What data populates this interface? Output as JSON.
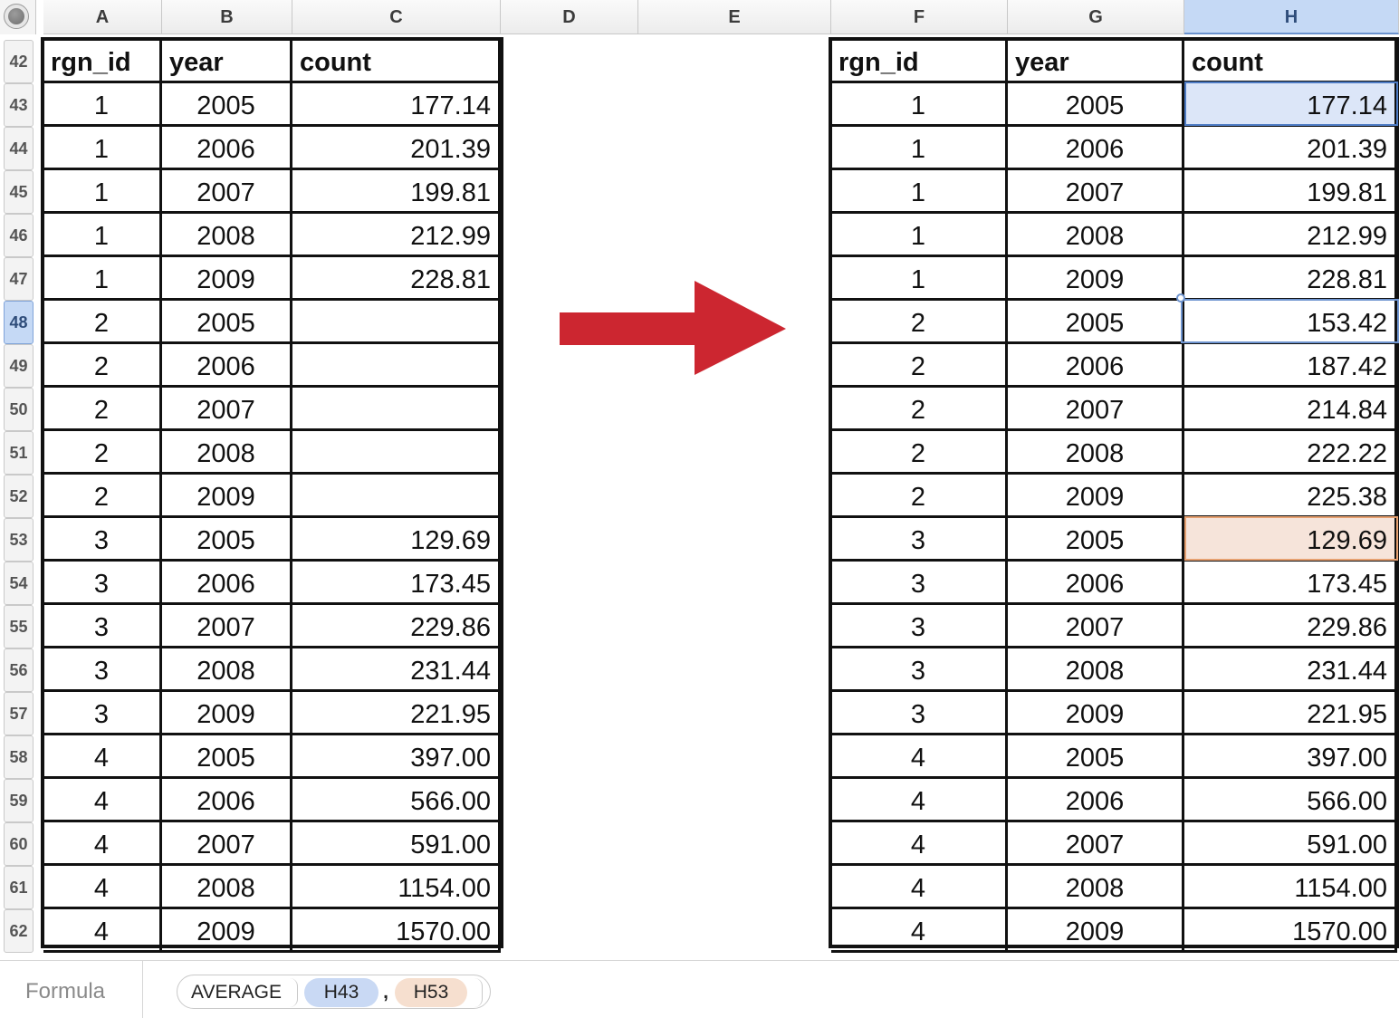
{
  "column_headers": [
    {
      "label": "A",
      "selected": false
    },
    {
      "label": "B",
      "selected": false
    },
    {
      "label": "C",
      "selected": false
    },
    {
      "label": "D",
      "selected": false
    },
    {
      "label": "E",
      "selected": false
    },
    {
      "label": "F",
      "selected": false
    },
    {
      "label": "G",
      "selected": false
    },
    {
      "label": "H",
      "selected": true
    }
  ],
  "row_headers": [
    "42",
    "43",
    "44",
    "45",
    "46",
    "47",
    "48",
    "49",
    "50",
    "51",
    "52",
    "53",
    "54",
    "55",
    "56",
    "57",
    "58",
    "59",
    "60",
    "61",
    "62"
  ],
  "selected_row": "48",
  "left_table": {
    "headers": [
      "rgn_id",
      "year",
      "count"
    ],
    "rows": [
      [
        "1",
        "2005",
        "177.14"
      ],
      [
        "1",
        "2006",
        "201.39"
      ],
      [
        "1",
        "2007",
        "199.81"
      ],
      [
        "1",
        "2008",
        "212.99"
      ],
      [
        "1",
        "2009",
        "228.81"
      ],
      [
        "2",
        "2005",
        ""
      ],
      [
        "2",
        "2006",
        ""
      ],
      [
        "2",
        "2007",
        ""
      ],
      [
        "2",
        "2008",
        ""
      ],
      [
        "2",
        "2009",
        ""
      ],
      [
        "3",
        "2005",
        "129.69"
      ],
      [
        "3",
        "2006",
        "173.45"
      ],
      [
        "3",
        "2007",
        "229.86"
      ],
      [
        "3",
        "2008",
        "231.44"
      ],
      [
        "3",
        "2009",
        "221.95"
      ],
      [
        "4",
        "2005",
        "397.00"
      ],
      [
        "4",
        "2006",
        "566.00"
      ],
      [
        "4",
        "2007",
        "591.00"
      ],
      [
        "4",
        "2008",
        "1154.00"
      ],
      [
        "4",
        "2009",
        "1570.00"
      ]
    ]
  },
  "right_table": {
    "headers": [
      "rgn_id",
      "year",
      "count"
    ],
    "rows": [
      [
        "1",
        "2005",
        "177.14"
      ],
      [
        "1",
        "2006",
        "201.39"
      ],
      [
        "1",
        "2007",
        "199.81"
      ],
      [
        "1",
        "2008",
        "212.99"
      ],
      [
        "1",
        "2009",
        "228.81"
      ],
      [
        "2",
        "2005",
        "153.42"
      ],
      [
        "2",
        "2006",
        "187.42"
      ],
      [
        "2",
        "2007",
        "214.84"
      ],
      [
        "2",
        "2008",
        "222.22"
      ],
      [
        "2",
        "2009",
        "225.38"
      ],
      [
        "3",
        "2005",
        "129.69"
      ],
      [
        "3",
        "2006",
        "173.45"
      ],
      [
        "3",
        "2007",
        "229.86"
      ],
      [
        "3",
        "2008",
        "231.44"
      ],
      [
        "3",
        "2009",
        "221.95"
      ],
      [
        "4",
        "2005",
        "397.00"
      ],
      [
        "4",
        "2006",
        "566.00"
      ],
      [
        "4",
        "2007",
        "591.00"
      ],
      [
        "4",
        "2008",
        "1154.00"
      ],
      [
        "4",
        "2009",
        "1570.00"
      ]
    ],
    "highlight_blue_row": 0,
    "highlight_orange_row": 10,
    "current_cell_row": 5
  },
  "arrow": {
    "icon": "right-arrow-icon",
    "color": "#cc2630"
  },
  "formula_bar": {
    "label": "Formula",
    "function": "AVERAGE",
    "ref1": "H43",
    "separator": ",",
    "ref2": "H53"
  },
  "colors": {
    "ref1": "#c9d9f4",
    "ref2": "#f6dfcf",
    "selection": "#c5d9f5"
  }
}
